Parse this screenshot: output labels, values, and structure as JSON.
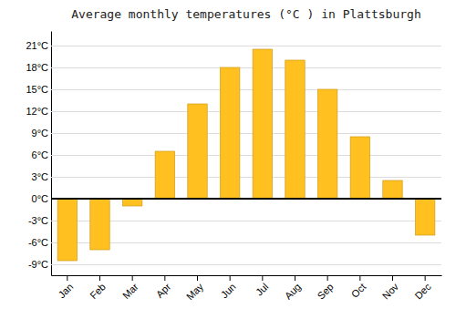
{
  "chart_data": {
    "type": "bar",
    "title": "Average monthly temperatures (°C ) in Plattsburgh",
    "categories": [
      "Jan",
      "Feb",
      "Mar",
      "Apr",
      "May",
      "Jun",
      "Jul",
      "Aug",
      "Sep",
      "Oct",
      "Nov",
      "Dec"
    ],
    "values": [
      -8.5,
      -7.0,
      -1.0,
      6.5,
      13.0,
      18.0,
      20.5,
      19.0,
      15.0,
      8.5,
      2.5,
      -5.0
    ],
    "color": "#FFC020",
    "ylim": [
      -10.5,
      23
    ],
    "yticks": [
      {
        "value": -9,
        "label": "-9°C"
      },
      {
        "value": -6,
        "label": "-6°C"
      },
      {
        "value": -3,
        "label": "-3°C"
      },
      {
        "value": 0,
        "label": "0°C"
      },
      {
        "value": 3,
        "label": "3°C"
      },
      {
        "value": 6,
        "label": "6°C"
      },
      {
        "value": 9,
        "label": "9°C"
      },
      {
        "value": 12,
        "label": "12°C"
      },
      {
        "value": 15,
        "label": "15°C"
      },
      {
        "value": 18,
        "label": "18°C"
      },
      {
        "value": 21,
        "label": "21°C"
      }
    ],
    "grid": true
  }
}
